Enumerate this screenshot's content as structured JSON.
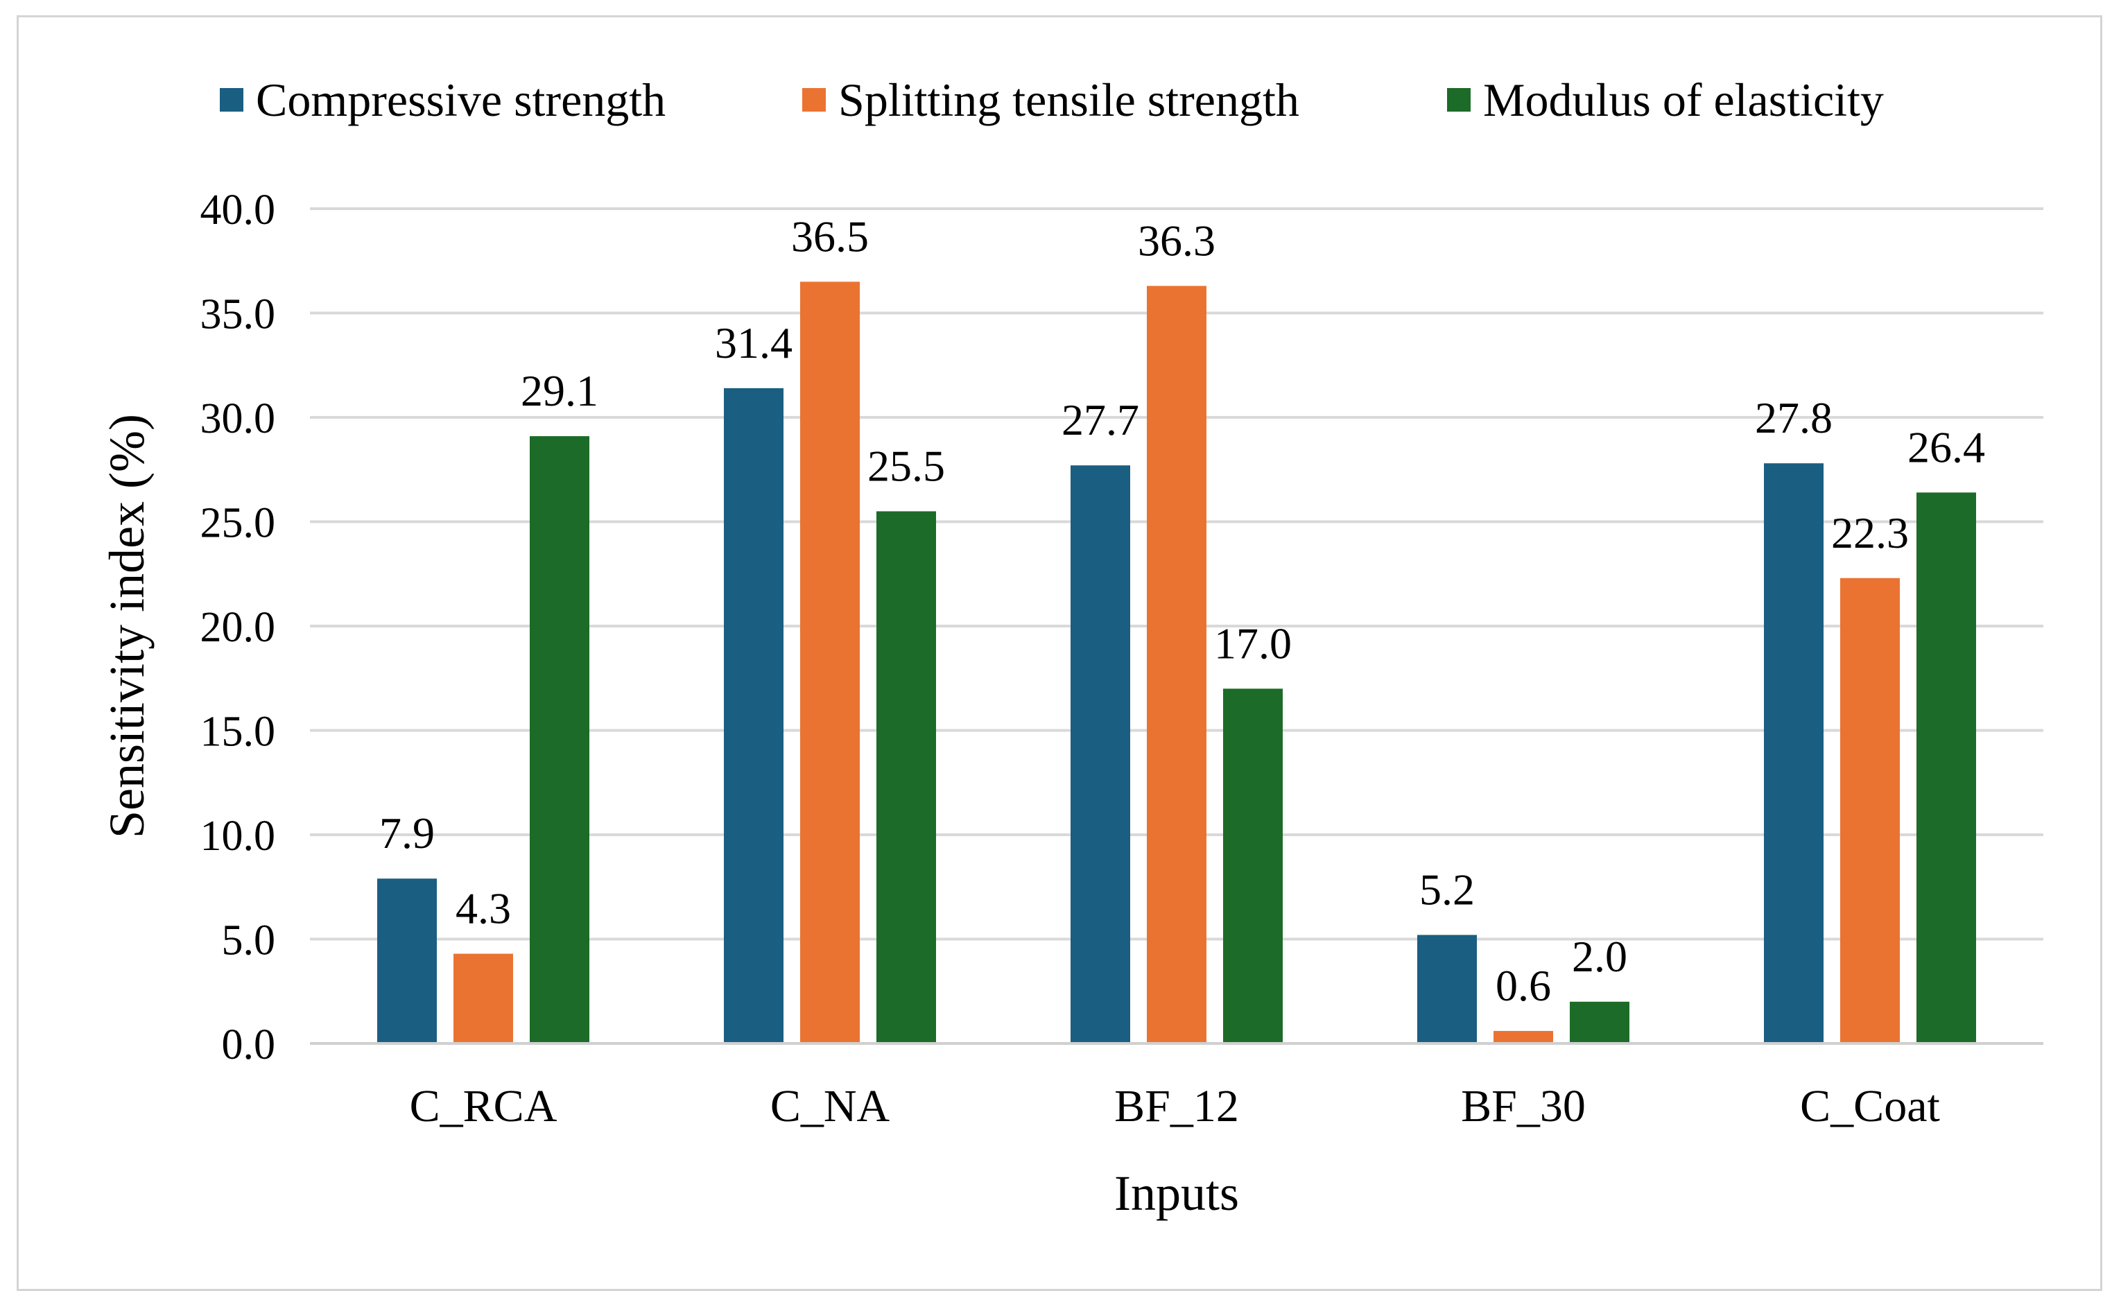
{
  "chart_data": {
    "type": "bar",
    "categories": [
      "C_RCA",
      "C_NA",
      "BF_12",
      "BF_30",
      "C_Coat"
    ],
    "series": [
      {
        "name": "Compressive strength",
        "values": [
          7.9,
          31.4,
          27.7,
          5.2,
          27.8
        ],
        "color": "#1a5e82"
      },
      {
        "name": "Splitting tensile strength",
        "values": [
          4.3,
          36.5,
          36.3,
          0.6,
          22.3
        ],
        "color": "#eb7331"
      },
      {
        "name": "Modulus of elasticity",
        "values": [
          29.1,
          25.5,
          17.0,
          2.0,
          26.4
        ],
        "color": "#1c6b28"
      }
    ],
    "xlabel": "Inputs",
    "ylabel": "Sensitivity index (%)",
    "ylim": [
      0,
      40
    ],
    "yticks": [
      "0.0",
      "5.0",
      "10.0",
      "15.0",
      "20.0",
      "25.0",
      "30.0",
      "35.0",
      "40.0"
    ],
    "grid": true,
    "legend_position": "top",
    "value_labels": [
      [
        "7.9",
        "31.4",
        "27.7",
        "5.2",
        "27.8"
      ],
      [
        "4.3",
        "36.5",
        "36.3",
        "0.6",
        "22.3"
      ],
      [
        "29.1",
        "25.5",
        "17.0",
        "2.0",
        "26.4"
      ]
    ]
  }
}
